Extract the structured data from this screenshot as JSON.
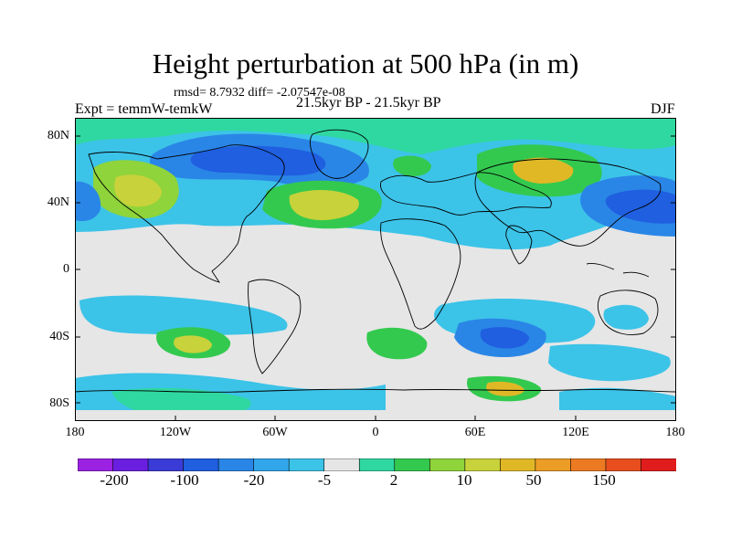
{
  "figure": {
    "title": "Height perturbation at 500 hPa (in m)",
    "stats": "rmsd= 8.7932 diff= -2.07547e-08",
    "experiment": "Expt = temmW-temkW",
    "subtitle": "21.5kyr BP - 21.5kyr BP",
    "season": "DJF"
  },
  "axes": {
    "lat_labels": [
      "80N",
      "40N",
      "0",
      "40S",
      "80S"
    ],
    "lon_labels": [
      "180",
      "120W",
      "60W",
      "0",
      "60E",
      "120E",
      "180"
    ]
  },
  "colorbar": {
    "colors": [
      "#9b21e3",
      "#6a1fe0",
      "#3b3bd8",
      "#1f5fe0",
      "#2a86e6",
      "#32a6ea",
      "#3cc3e8",
      "#e6e6e6",
      "#2fd8a0",
      "#33c94f",
      "#8ed43a",
      "#c8d23a",
      "#e0b826",
      "#eb9d26",
      "#ec7a22",
      "#e84e1e",
      "#e01c1c"
    ],
    "labels": [
      "-200",
      "-100",
      "-20",
      "-5",
      "2",
      "10",
      "50",
      "150"
    ]
  },
  "map_fields": {
    "projection": "cylindrical equidistant",
    "background_color": "#e6e6e6",
    "coastline_color": "#000000"
  }
}
